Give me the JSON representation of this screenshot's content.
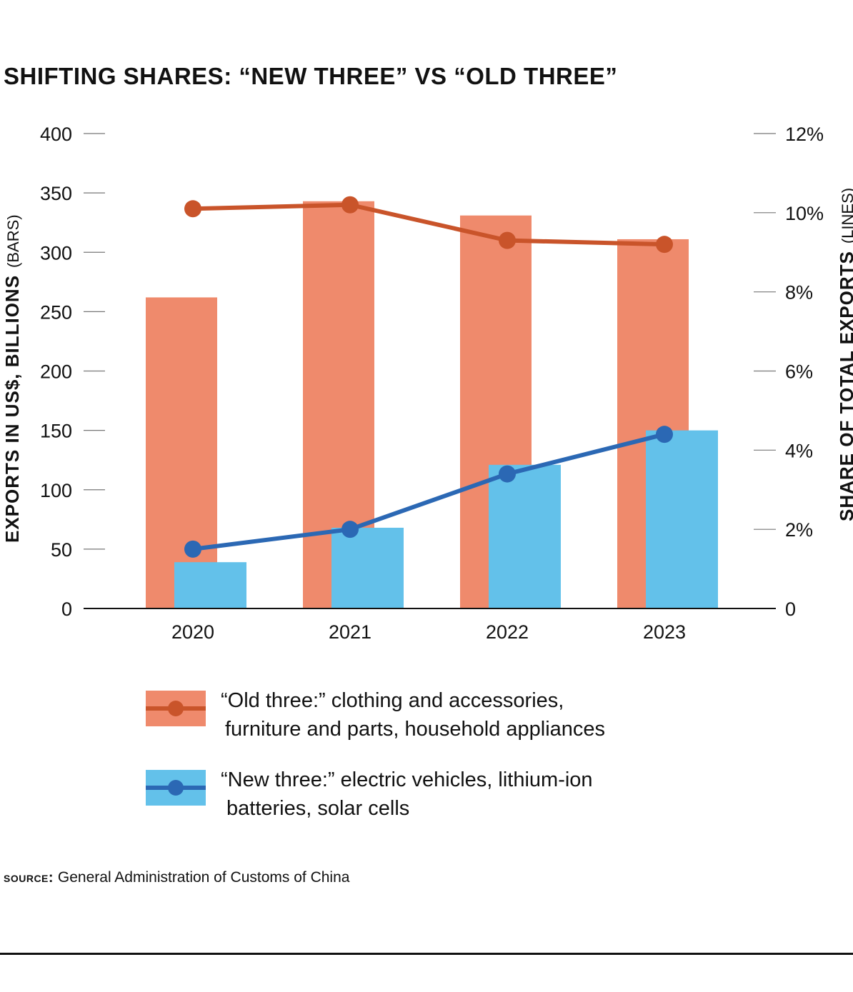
{
  "title": "SHIFTING SHARES: “NEW THREE” VS “OLD THREE”",
  "source_label": "SOURCE:",
  "source_text": "General Administration of Customs of China",
  "colors": {
    "old_bar": "#ef8a6c",
    "old_line": "#c9542a",
    "new_bar": "#63c1ea",
    "new_line": "#2b68b4"
  },
  "legend": {
    "old": {
      "line1": "“Old three:” clothing and accessories,",
      "line2": "furniture and parts, household appliances"
    },
    "new": {
      "line1": "“New three:” electric vehicles, lithium-ion",
      "line2": "batteries, solar cells"
    }
  },
  "chart_data": {
    "type": "bar",
    "title": "SHIFTING SHARES: “NEW THREE” VS “OLD THREE”",
    "categories": [
      "2020",
      "2021",
      "2022",
      "2023"
    ],
    "ylabel": "EXPORTS IN US$, BILLIONS",
    "ylabel_suffix": "(BARS)",
    "y2label": "SHARE OF TOTAL EXPORTS",
    "y2label_suffix": "(LINES)",
    "ylim": [
      0,
      400
    ],
    "yticks": [
      "0",
      "50",
      "100",
      "150",
      "200",
      "250",
      "300",
      "350",
      "400"
    ],
    "y2lim": [
      0,
      12
    ],
    "y2ticks": [
      "0",
      "2%",
      "4%",
      "6%",
      "8%",
      "10%",
      "12%"
    ],
    "bar_series": [
      {
        "name": "“Old three” exports",
        "values": [
          262,
          343,
          331,
          311
        ]
      },
      {
        "name": "“New three” exports",
        "values": [
          39,
          68,
          121,
          150
        ]
      }
    ],
    "line_series": [
      {
        "name": "“Old three” share",
        "values": [
          10.1,
          10.2,
          9.3,
          9.2
        ]
      },
      {
        "name": "“New three” share",
        "values": [
          1.5,
          2.0,
          3.4,
          4.4
        ]
      }
    ]
  }
}
